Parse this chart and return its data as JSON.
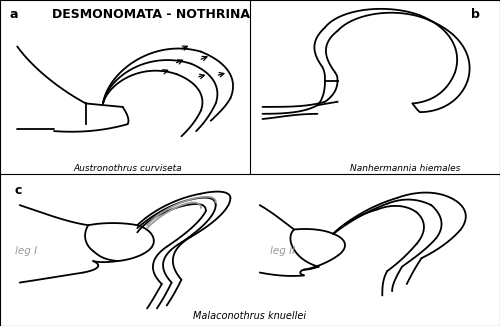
{
  "title": "DESMONOMATA - NOTHRINA",
  "label_a": "a",
  "label_b": "b",
  "label_c": "c",
  "caption_a": "Austronothrus curviseta",
  "caption_b": "Nanhermannia hiemales",
  "caption_c": "Malaconothrus knuellei",
  "leg_I_label": "leg I",
  "leg_II_label": "leg II",
  "bg_color": "#ffffff",
  "line_color": "#000000",
  "gray_color": "#999999",
  "line_width": 1.3,
  "fig_width": 5.0,
  "fig_height": 3.26
}
